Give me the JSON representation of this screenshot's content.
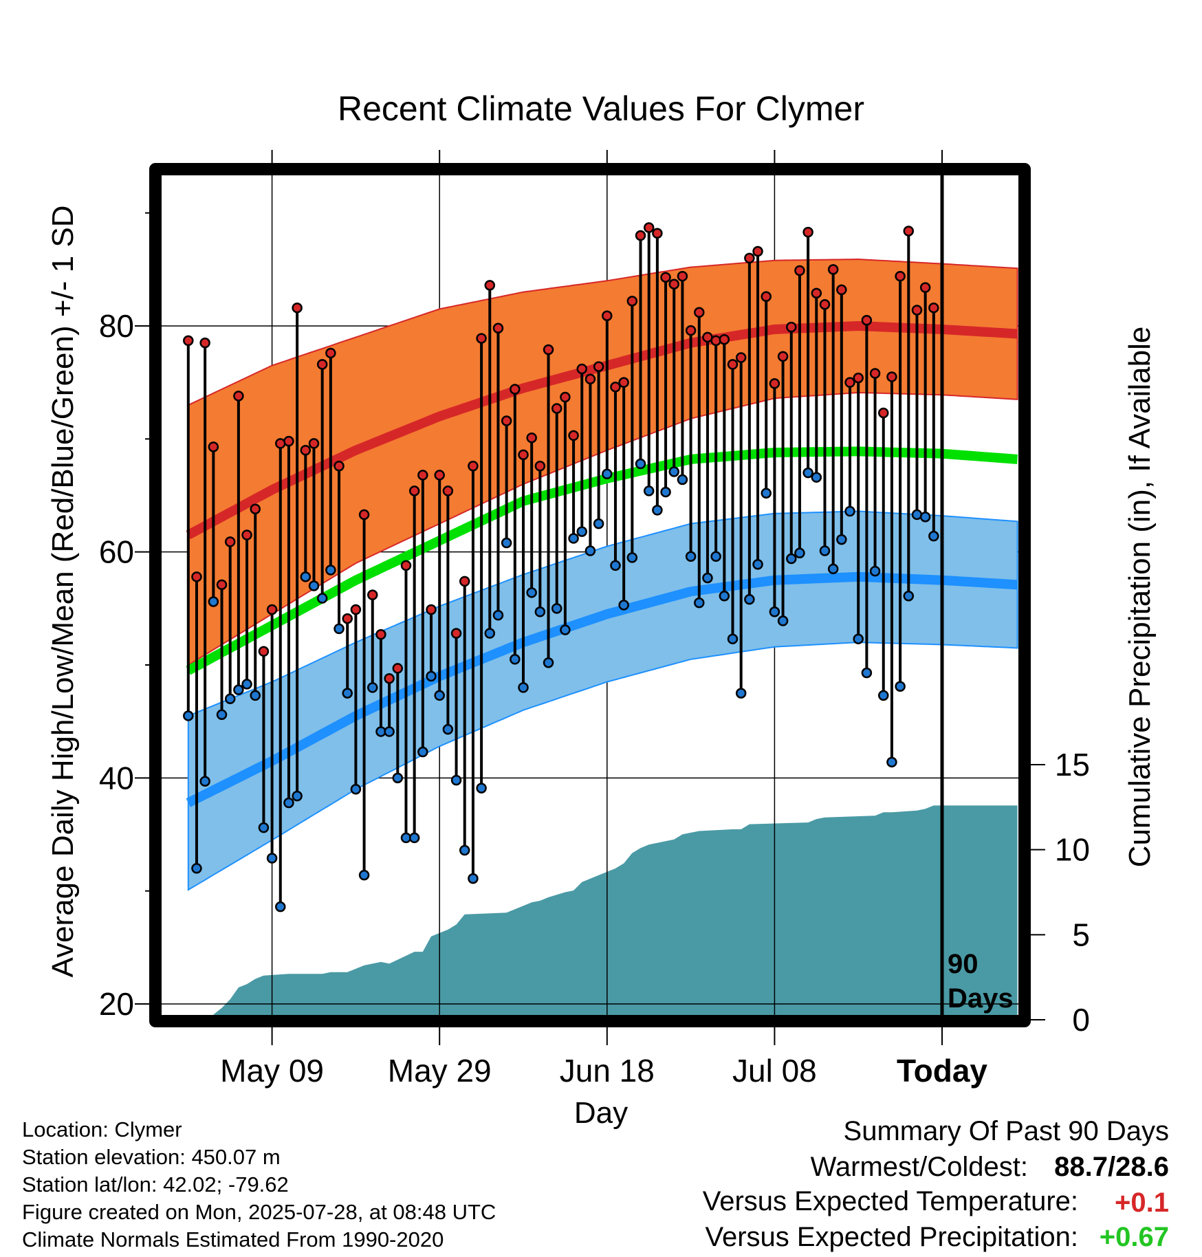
{
  "chart_data": {
    "type": "line",
    "title": "Recent Climate Values For Clymer",
    "xlabel": "Day",
    "ylabel": "Average Daily High/Low/Mean (Red/Blue/Green) +/- 1 SD",
    "y2label": "Cumulative Precipitation (in), If Available",
    "x_day_range": [
      -90,
      9
    ],
    "ylim": [
      19,
      94
    ],
    "y2lim": [
      0,
      15
    ],
    "x_ticks": [
      {
        "day": -80,
        "label": "May 09"
      },
      {
        "day": -60,
        "label": "May 29"
      },
      {
        "day": -40,
        "label": "Jun 18"
      },
      {
        "day": -20,
        "label": "Jul 08"
      },
      {
        "day": 0,
        "label": "Today"
      }
    ],
    "y_ticks": [
      20,
      40,
      60,
      80
    ],
    "y2_ticks": [
      0,
      5,
      10,
      15
    ],
    "today_label": "90\nDays",
    "colors": {
      "high_band": "#f47b32",
      "high_line": "#d62728",
      "low_band": "#7fbfea",
      "low_line": "#1e90ff",
      "mean_line": "#00e000",
      "precip": "#4a9aa5",
      "high_point": "#d62728",
      "low_point": "#1f77d0"
    },
    "normals": {
      "days": [
        -90,
        -80,
        -70,
        -60,
        -50,
        -40,
        -30,
        -20,
        -10,
        0,
        9
      ],
      "high": [
        61.5,
        65.5,
        69.0,
        72.0,
        74.5,
        76.5,
        78.5,
        79.7,
        80.0,
        79.7,
        79.3
      ],
      "high_sd": [
        11.5,
        11.0,
        10.0,
        9.5,
        8.5,
        7.5,
        6.7,
        6.1,
        5.9,
        5.8,
        5.8
      ],
      "low": [
        37.8,
        41.5,
        45.5,
        49.0,
        52.0,
        54.5,
        56.5,
        57.5,
        57.8,
        57.5,
        57.1
      ],
      "low_sd": [
        7.7,
        7.0,
        6.5,
        6.2,
        6.0,
        6.0,
        6.0,
        5.9,
        5.8,
        5.7,
        5.6
      ],
      "mean": [
        49.5,
        53.5,
        57.5,
        61.0,
        64.5,
        66.5,
        68.2,
        68.8,
        68.9,
        68.7,
        68.2
      ]
    },
    "daily_high": [
      78.7,
      57.8,
      78.5,
      69.3,
      57.1,
      60.9,
      73.8,
      61.5,
      63.8,
      51.2,
      54.9,
      69.6,
      69.8,
      81.6,
      69.0,
      69.6,
      76.6,
      77.6,
      67.6,
      54.1,
      54.9,
      63.3,
      56.2,
      52.7,
      48.8,
      49.7,
      58.8,
      65.4,
      66.8,
      54.9,
      66.8,
      65.4,
      52.8,
      57.4,
      67.6,
      78.9,
      83.6,
      79.8,
      71.6,
      74.4,
      68.6,
      70.1,
      67.6,
      77.9,
      72.7,
      73.7,
      70.3,
      76.2,
      75.3,
      76.4,
      80.9,
      74.6,
      75.0,
      82.2,
      88.0,
      88.7,
      88.2,
      84.3,
      83.7,
      84.4,
      79.6,
      81.2,
      79.0,
      78.7,
      78.8,
      76.6,
      77.2,
      86.0,
      86.6,
      82.6,
      74.9,
      77.3,
      79.9,
      84.9,
      88.3,
      82.9,
      81.9,
      85.0,
      83.2,
      75.0,
      75.4,
      80.5,
      75.8,
      72.3,
      75.5,
      84.4,
      88.4,
      81.4,
      83.4,
      81.6
    ],
    "daily_low": [
      45.5,
      32.0,
      39.7,
      55.6,
      45.6,
      47.0,
      47.8,
      48.3,
      47.3,
      35.6,
      32.9,
      28.6,
      37.8,
      38.4,
      57.8,
      57.0,
      55.9,
      58.4,
      53.2,
      47.5,
      39.0,
      31.4,
      48.0,
      44.1,
      44.1,
      40.0,
      34.7,
      34.7,
      42.3,
      49.0,
      47.3,
      44.3,
      39.8,
      33.6,
      31.1,
      39.1,
      52.8,
      54.4,
      60.8,
      50.5,
      48.0,
      56.4,
      54.7,
      50.2,
      55.0,
      53.1,
      61.2,
      61.8,
      60.1,
      62.5,
      66.9,
      58.8,
      55.3,
      59.5,
      67.8,
      65.4,
      63.7,
      65.3,
      67.1,
      66.4,
      59.6,
      55.5,
      57.7,
      59.6,
      56.1,
      52.3,
      47.5,
      55.8,
      58.9,
      65.2,
      54.7,
      53.9,
      59.4,
      59.9,
      67.0,
      66.6,
      60.1,
      58.5,
      61.1,
      63.6,
      52.3,
      49.3,
      58.3,
      47.3,
      41.4,
      48.1,
      56.1,
      63.3,
      63.1,
      61.4
    ],
    "precip_cumulative": {
      "days": [
        -88,
        -87,
        -86,
        -85,
        -84,
        -83,
        -82,
        -81,
        -78,
        -75,
        -74,
        -73,
        -71,
        -69,
        -68,
        -67,
        -66,
        -63,
        -62,
        -61,
        -59,
        -58,
        -57,
        -52,
        -51,
        -50,
        -49,
        -48,
        -47,
        -45,
        -44,
        -43,
        -42,
        -41,
        -39,
        -38,
        -37,
        -36,
        -35,
        -34,
        -33,
        -32,
        -31,
        -30,
        -29,
        -25,
        -24,
        -23,
        -16,
        -15,
        -14,
        -8,
        -7,
        -6,
        -3,
        -2,
        -1,
        0,
        9
      ],
      "values": [
        0.0,
        0.3,
        0.7,
        1.2,
        1.9,
        2.1,
        2.4,
        2.6,
        2.7,
        2.7,
        2.7,
        2.8,
        2.8,
        3.2,
        3.3,
        3.4,
        3.3,
        4.0,
        4.0,
        4.9,
        5.3,
        5.6,
        6.2,
        6.3,
        6.5,
        6.7,
        6.9,
        7.0,
        7.2,
        7.5,
        7.6,
        8.1,
        8.3,
        8.5,
        8.9,
        9.2,
        9.8,
        10.1,
        10.3,
        10.4,
        10.5,
        10.6,
        10.9,
        11.0,
        11.1,
        11.2,
        11.2,
        11.5,
        11.6,
        11.8,
        11.9,
        12.0,
        12.2,
        12.2,
        12.3,
        12.4,
        12.6,
        12.6,
        12.6
      ]
    }
  },
  "footer": {
    "location": "Location: Clymer",
    "elevation": "Station elevation: 450.07 m",
    "latlon": "Station lat/lon: 42.02; -79.62",
    "created": "Figure created on Mon, 2025-07-28, at 08:48 UTC",
    "normals_note": "Climate Normals Estimated From 1990-2020"
  },
  "summary": {
    "heading": "Summary Of Past 90 Days",
    "warmest_label": "Warmest/Coldest:",
    "warmest_value": "88.7/28.6",
    "temp_label": "Versus Expected Temperature:",
    "temp_value": "+0.1",
    "temp_color": "#d62728",
    "precip_label": "Versus Expected Precipitation:",
    "precip_value": "+0.67",
    "precip_color": "#22c522"
  }
}
